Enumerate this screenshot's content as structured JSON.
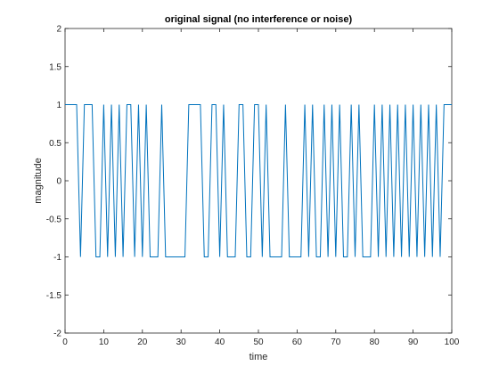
{
  "chart_data": {
    "type": "line",
    "title": "original signal (no interference or noise)",
    "xlabel": "time",
    "ylabel": "magnitude",
    "xlim": [
      0,
      100
    ],
    "ylim": [
      -2,
      2
    ],
    "grid": false,
    "x_ticks": [
      "0",
      "10",
      "20",
      "30",
      "40",
      "50",
      "60",
      "70",
      "80",
      "90",
      "100"
    ],
    "y_ticks": [
      "-2",
      "-1.5",
      "-1",
      "-0.5",
      "0",
      "0.5",
      "1",
      "1.5",
      "2"
    ],
    "colors": {
      "line": "#0072bd",
      "axes": "#262626"
    },
    "series": [
      {
        "x": [
          0,
          1,
          2,
          3,
          4,
          5,
          6,
          7,
          8,
          9,
          10,
          11,
          12,
          13,
          14,
          15,
          16,
          17,
          18,
          19,
          20,
          21,
          22,
          23,
          24,
          25,
          26,
          27,
          28,
          29,
          30,
          31,
          32,
          33,
          34,
          35,
          36,
          37,
          38,
          39,
          40,
          41,
          42,
          43,
          44,
          45,
          46,
          47,
          48,
          49,
          50,
          51,
          52,
          53,
          54,
          55,
          56,
          57,
          58,
          59,
          60,
          61,
          62,
          63,
          64,
          65,
          66,
          67,
          68,
          69,
          70,
          71,
          72,
          73,
          74,
          75,
          76,
          77,
          78,
          79,
          80,
          81,
          82,
          83,
          84,
          85,
          86,
          87,
          88,
          89,
          90,
          91,
          92,
          93,
          94,
          95,
          96,
          97,
          98,
          99,
          100
        ],
        "values": [
          1,
          1,
          1,
          1,
          -1,
          1,
          1,
          1,
          -1,
          -1,
          1,
          -1,
          1,
          -1,
          1,
          -1,
          1,
          1,
          -1,
          1,
          -1,
          1,
          -1,
          -1,
          -1,
          1,
          -1,
          -1,
          -1,
          -1,
          -1,
          -1,
          1,
          1,
          1,
          1,
          -1,
          -1,
          1,
          1,
          -1,
          1,
          -1,
          -1,
          -1,
          1,
          1,
          -1,
          -1,
          1,
          1,
          -1,
          1,
          -1,
          -1,
          -1,
          -1,
          1,
          -1,
          -1,
          -1,
          -1,
          1,
          -1,
          1,
          -1,
          -1,
          1,
          -1,
          1,
          -1,
          1,
          -1,
          -1,
          1,
          -1,
          1,
          -1,
          -1,
          -1,
          1,
          -1,
          1,
          -1,
          1,
          -1,
          1,
          -1,
          1,
          -1,
          1,
          -1,
          1,
          -1,
          1,
          -1,
          1,
          -1,
          1,
          1,
          1
        ]
      }
    ]
  }
}
